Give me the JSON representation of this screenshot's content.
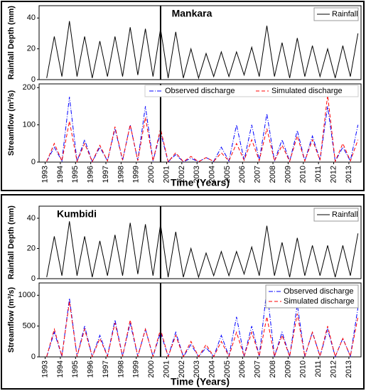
{
  "chart_data": [
    {
      "type": "line",
      "title": "Mankara",
      "ylabel": "Rainfall Depth (mm)",
      "ylim": [
        0,
        48
      ],
      "yticks": [
        0,
        20,
        40
      ],
      "xlim": [
        1992.6,
        2013.8
      ],
      "vline": 2000.6,
      "legend": "upper right",
      "x": [
        1993.1,
        1993.6,
        1994.1,
        1994.6,
        1995.1,
        1995.6,
        1996.1,
        1996.6,
        1997.1,
        1997.6,
        1998.1,
        1998.6,
        1999.1,
        1999.6,
        2000.1,
        2000.6,
        2001.1,
        2001.6,
        2002.1,
        2002.6,
        2003.1,
        2003.6,
        2004.1,
        2004.6,
        2005.1,
        2005.6,
        2006.1,
        2006.6,
        2007.1,
        2007.6,
        2008.1,
        2008.6,
        2009.1,
        2009.6,
        2010.1,
        2010.6,
        2011.1,
        2011.6,
        2012.1,
        2012.6,
        2013.1,
        2013.6
      ],
      "series": [
        {
          "name": "Rainfall",
          "color": "#000000",
          "dash": "solid",
          "values": [
            1,
            28,
            2,
            38,
            2,
            28,
            1,
            25,
            2,
            28,
            2,
            34,
            3,
            33,
            2,
            33,
            1,
            31,
            1,
            20,
            1,
            17,
            2,
            18,
            2,
            18,
            3,
            21,
            2,
            35,
            2,
            24,
            1,
            27,
            2,
            22,
            2,
            20,
            1,
            22,
            2,
            30
          ]
        }
      ]
    },
    {
      "type": "line",
      "ylabel": "Streamflow (m³/s)",
      "xlabel": "Time (Years)",
      "ylim": [
        0,
        210
      ],
      "yticks": [
        0,
        100,
        200
      ],
      "xlim": [
        1992.6,
        2013.8
      ],
      "vline": 2000.6,
      "legend": "top",
      "xticks": [
        1993,
        1994,
        1995,
        1996,
        1997,
        1998,
        1999,
        2000,
        2001,
        2002,
        2003,
        2004,
        2005,
        2006,
        2007,
        2008,
        2009,
        2010,
        2011,
        2012,
        2013
      ],
      "x": [
        1993.1,
        1993.6,
        1994.1,
        1994.6,
        1995.1,
        1995.6,
        1996.1,
        1996.6,
        1997.1,
        1997.6,
        1998.1,
        1998.6,
        1999.1,
        1999.6,
        2000.1,
        2000.6,
        2001.1,
        2001.6,
        2002.1,
        2002.6,
        2003.1,
        2003.6,
        2004.1,
        2004.6,
        2005.1,
        2005.6,
        2006.1,
        2006.6,
        2007.1,
        2007.6,
        2008.1,
        2008.6,
        2009.1,
        2009.6,
        2010.1,
        2010.6,
        2011.1,
        2011.6,
        2012.1,
        2012.6,
        2013.1,
        2013.6
      ],
      "series": [
        {
          "name": "Observed discharge",
          "color": "#0000ff",
          "dash": "dashdot",
          "values": [
            2,
            40,
            3,
            175,
            2,
            60,
            1,
            40,
            3,
            90,
            5,
            100,
            4,
            150,
            3,
            80,
            1,
            20,
            1,
            10,
            1,
            12,
            2,
            40,
            3,
            100,
            5,
            100,
            4,
            130,
            3,
            60,
            2,
            85,
            3,
            70,
            5,
            150,
            2,
            40,
            3,
            100
          ]
        },
        {
          "name": "Simulated discharge",
          "color": "#ff0000",
          "dash": "dashed",
          "values": [
            2,
            50,
            3,
            110,
            2,
            50,
            1,
            45,
            3,
            95,
            5,
            100,
            4,
            120,
            3,
            90,
            1,
            25,
            1,
            15,
            1,
            12,
            2,
            25,
            3,
            50,
            5,
            60,
            4,
            90,
            3,
            45,
            2,
            70,
            3,
            60,
            5,
            180,
            2,
            50,
            3,
            60
          ]
        }
      ]
    },
    {
      "type": "line",
      "title": "Kumbidi",
      "ylabel": "Rainfall Depth (mm)",
      "ylim": [
        0,
        48
      ],
      "yticks": [
        0,
        20,
        40
      ],
      "xlim": [
        1992.6,
        2013.8
      ],
      "vline": 2000.6,
      "legend": "upper right",
      "x": [
        1993.1,
        1993.6,
        1994.1,
        1994.6,
        1995.1,
        1995.6,
        1996.1,
        1996.6,
        1997.1,
        1997.6,
        1998.1,
        1998.6,
        1999.1,
        1999.6,
        2000.1,
        2000.6,
        2001.1,
        2001.6,
        2002.1,
        2002.6,
        2003.1,
        2003.6,
        2004.1,
        2004.6,
        2005.1,
        2005.6,
        2006.1,
        2006.6,
        2007.1,
        2007.6,
        2008.1,
        2008.6,
        2009.1,
        2009.6,
        2010.1,
        2010.6,
        2011.1,
        2011.6,
        2012.1,
        2012.6,
        2013.1,
        2013.6
      ],
      "series": [
        {
          "name": "Rainfall",
          "color": "#000000",
          "dash": "solid",
          "values": [
            1,
            28,
            2,
            38,
            2,
            28,
            1,
            25,
            2,
            29,
            2,
            37,
            3,
            36,
            2,
            36,
            1,
            31,
            1,
            20,
            1,
            17,
            2,
            18,
            2,
            18,
            3,
            21,
            2,
            35,
            2,
            24,
            1,
            27,
            2,
            22,
            2,
            22,
            1,
            22,
            2,
            30
          ]
        }
      ]
    },
    {
      "type": "line",
      "ylabel": "Streamflow (m³/s)",
      "xlabel": "Time (Years)",
      "ylim": [
        0,
        1200
      ],
      "yticks": [
        0,
        500,
        1000
      ],
      "xlim": [
        1992.6,
        2013.8
      ],
      "vline": 2000.6,
      "legend": "upper right",
      "xticks": [
        1993,
        1994,
        1995,
        1996,
        1997,
        1998,
        1999,
        2000,
        2001,
        2002,
        2003,
        2004,
        2005,
        2006,
        2007,
        2008,
        2009,
        2010,
        2011,
        2012,
        2013
      ],
      "x": [
        1993.1,
        1993.6,
        1994.1,
        1994.6,
        1995.1,
        1995.6,
        1996.1,
        1996.6,
        1997.1,
        1997.6,
        1998.1,
        1998.6,
        1999.1,
        1999.6,
        2000.1,
        2000.6,
        2001.1,
        2001.6,
        2002.1,
        2002.6,
        2003.1,
        2003.6,
        2004.1,
        2004.6,
        2005.1,
        2005.6,
        2006.1,
        2006.6,
        2007.1,
        2007.6,
        2008.1,
        2008.6,
        2009.1,
        2009.6,
        2010.1,
        2010.6,
        2011.1,
        2011.6,
        2012.1,
        2012.6,
        2013.1,
        2013.6
      ],
      "series": [
        {
          "name": "Observed discharge",
          "color": "#0000ff",
          "dash": "dashdot",
          "values": [
            5,
            400,
            10,
            950,
            8,
            500,
            5,
            350,
            10,
            600,
            10,
            550,
            8,
            450,
            8,
            400,
            5,
            400,
            3,
            200,
            3,
            150,
            5,
            350,
            10,
            650,
            10,
            500,
            15,
            1100,
            8,
            400,
            8,
            850,
            8,
            400,
            10,
            450,
            5,
            300,
            10,
            800
          ]
        },
        {
          "name": "Simulated discharge",
          "color": "#ff0000",
          "dash": "dashed",
          "values": [
            5,
            450,
            10,
            900,
            8,
            450,
            5,
            300,
            10,
            550,
            10,
            600,
            8,
            450,
            8,
            450,
            5,
            350,
            3,
            250,
            3,
            200,
            5,
            250,
            10,
            400,
            10,
            400,
            15,
            650,
            8,
            350,
            8,
            700,
            8,
            400,
            10,
            500,
            5,
            300,
            10,
            650
          ]
        }
      ]
    }
  ]
}
